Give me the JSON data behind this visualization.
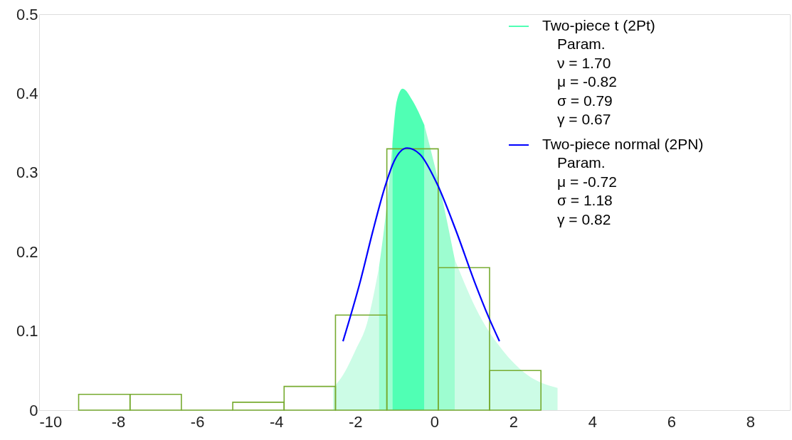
{
  "chart_data": {
    "type": "histogram",
    "legend": "top right",
    "xlim": [
      -10,
      9
    ],
    "ylim": [
      0,
      0.5
    ],
    "xticks": [
      -10,
      -8,
      -6,
      -4,
      -2,
      0,
      2,
      4,
      6,
      8
    ],
    "yticks": [
      0,
      0.1,
      0.2,
      0.3,
      0.4,
      0.5
    ],
    "grid": false,
    "series": [
      {
        "type": "area",
        "color": "#ccfce6",
        "x": [
          -2.56,
          -2.3,
          -2.0,
          -1.7,
          -1.4
        ],
        "values": [
          0.028,
          0.045,
          0.075,
          0.11,
          0.18
        ]
      },
      {
        "type": "area",
        "color": "#ccfce6",
        "x": [
          0.52,
          1.14,
          1.74,
          2.34,
          3.12
        ],
        "values": [
          0.19,
          0.12,
          0.075,
          0.045,
          0.028
        ]
      },
      {
        "type": "area",
        "color": "#9dfdd0",
        "x": [
          -1.4,
          -1.2,
          -1.06
        ],
        "values": [
          0.18,
          0.26,
          0.335
        ]
      },
      {
        "type": "area",
        "color": "#9dfdd0",
        "x": [
          -0.25,
          0.11,
          0.52
        ],
        "values": [
          0.36,
          0.288,
          0.19
        ]
      },
      {
        "type": "area",
        "name": "Two-piece t (2Pt)",
        "color": "#50ffb4",
        "x": [
          -1.06,
          -0.95,
          -0.8,
          -0.54,
          -0.25
        ],
        "values": [
          0.335,
          0.39,
          0.406,
          0.39,
          0.36
        ]
      },
      {
        "color": "#77ab30",
        "bins": [
          -9.0,
          -7.7,
          -6.4,
          -5.1,
          -3.8,
          -2.5,
          -1.2,
          0.1,
          1.4,
          2.7
        ],
        "values": [
          0.02,
          0.02,
          0,
          0.01,
          0.03,
          0.12,
          0.33,
          0.18,
          0.05
        ]
      },
      {
        "type": "line",
        "name": "Two-piece normal (2PN)",
        "color": "#0000ff",
        "x": [
          -2.31,
          -1.86,
          -1.56,
          -1.26,
          -1.02,
          -0.69,
          -0.36,
          0.06,
          0.54,
          1.02,
          1.38,
          1.65
        ],
        "values": [
          0.087,
          0.165,
          0.225,
          0.28,
          0.314,
          0.331,
          0.323,
          0.287,
          0.228,
          0.162,
          0.117,
          0.087
        ]
      }
    ],
    "annotations": [
      "Param.\nν = 1.70\nμ = -0.82\nσ = 0.79\nγ = 0.67",
      "Param.\nμ = -0.72\nσ = 1.18\nγ = 0.82"
    ]
  }
}
